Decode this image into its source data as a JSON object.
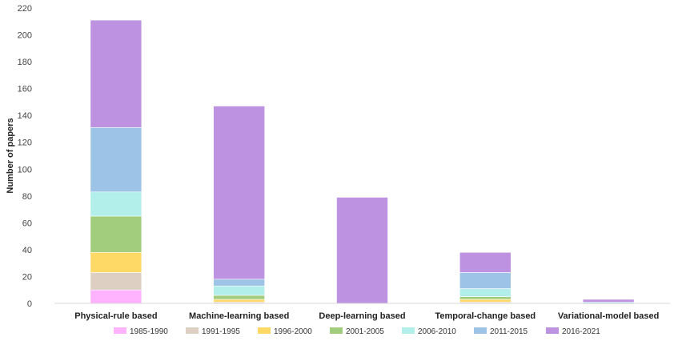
{
  "chart_data": {
    "type": "bar",
    "stacked": true,
    "title": "",
    "xlabel": "",
    "ylabel": "Number of papers",
    "ylim": [
      0,
      220
    ],
    "yticks": [
      0,
      20,
      40,
      60,
      80,
      100,
      120,
      140,
      160,
      180,
      200,
      220
    ],
    "grid": false,
    "legend_position": "bottom",
    "categories": [
      "Physical-rule based",
      "Machine-learning based",
      "Deep-learning based",
      "Temporal-change based",
      "Variational-model based"
    ],
    "series": [
      {
        "name": "1985-1990",
        "color": "#ffb3ff",
        "values": [
          10,
          0,
          0,
          0,
          0
        ]
      },
      {
        "name": "1991-1995",
        "color": "#ddd0c3",
        "values": [
          13,
          1,
          0,
          1,
          0
        ]
      },
      {
        "name": "1996-2000",
        "color": "#ffd966",
        "values": [
          15,
          2,
          0,
          2,
          0
        ]
      },
      {
        "name": "2001-2005",
        "color": "#a1cd7d",
        "values": [
          27,
          3,
          0,
          2,
          0
        ]
      },
      {
        "name": "2006-2010",
        "color": "#b2eeea",
        "values": [
          18,
          7,
          0,
          6,
          0
        ]
      },
      {
        "name": "2011-2015",
        "color": "#9dc3e6",
        "values": [
          48,
          5,
          0,
          12,
          1
        ]
      },
      {
        "name": "2016-2021",
        "color": "#bd92e0",
        "values": [
          80,
          129,
          79,
          15,
          2
        ]
      }
    ]
  }
}
